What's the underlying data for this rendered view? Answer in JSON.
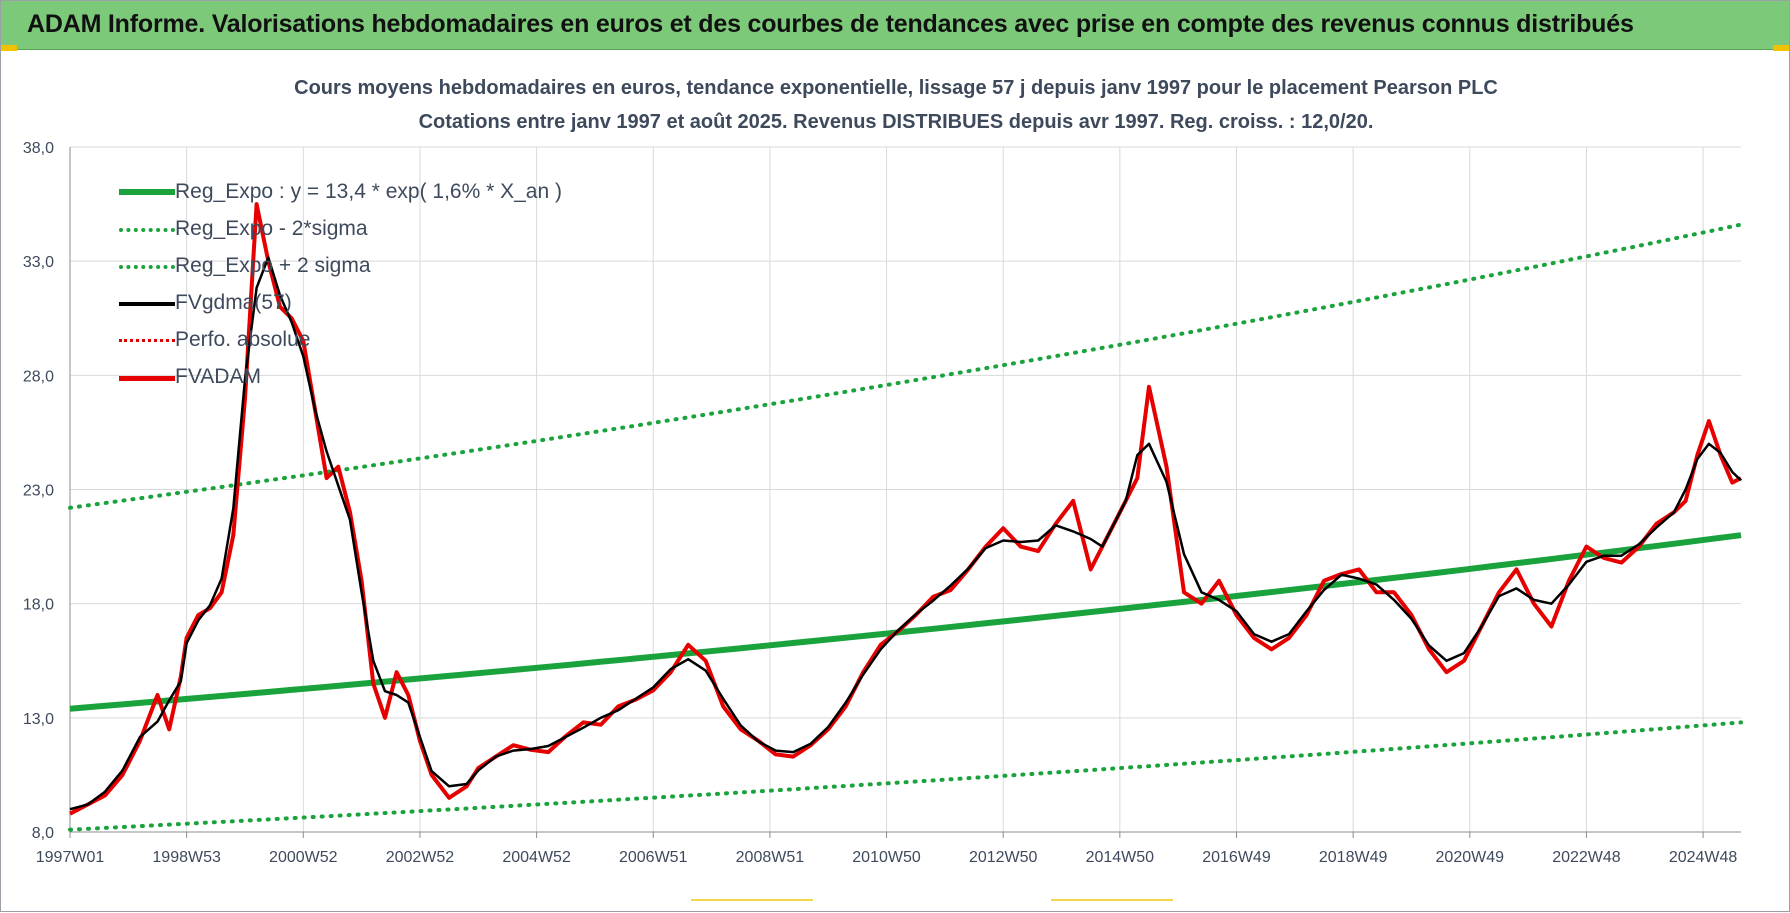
{
  "header": {
    "title": "ADAM Informe. Valorisations hebdomadaires en euros et des courbes de tendances avec prise en compte des revenus connus distribués"
  },
  "chart_data": {
    "type": "line",
    "title": "Cours moyens hebdomadaires en euros, tendance exponentielle, lissage 57 j depuis janv 1997  pour le placement Pearson PLC",
    "subtitle": "Cotations entre janv 1997 et août 2025.  Revenus DISTRIBUES depuis avr 1997.  Reg. croiss. : 12,0/20.",
    "xlabel": "",
    "ylabel": "",
    "xlim": [
      1997.0,
      2025.65
    ],
    "ylim": [
      8.0,
      38.0
    ],
    "yticks": [
      "8,0",
      "13,0",
      "18,0",
      "23,0",
      "28,0",
      "33,0",
      "38,0"
    ],
    "ytick_values": [
      8,
      13,
      18,
      23,
      28,
      33,
      38
    ],
    "xticks": [
      "1997W01",
      "1998W53",
      "2000W52",
      "2002W52",
      "2004W52",
      "2006W51",
      "2008W51",
      "2010W50",
      "2012W50",
      "2014W50",
      "2016W49",
      "2018W49",
      "2020W49",
      "2022W48",
      "2024W48"
    ],
    "xtick_values": [
      1997.0,
      1999.0,
      2001.0,
      2003.0,
      2005.0,
      2007.0,
      2009.0,
      2011.0,
      2013.0,
      2015.0,
      2017.0,
      2019.0,
      2021.0,
      2023.0,
      2025.0
    ],
    "grid": true,
    "legend_position": "top-left",
    "series": [
      {
        "name": "Reg_Expo : y = 13,4 * exp( 1,6% *  X_an )",
        "color": "#1aa33c",
        "style": "solid-thick",
        "x": [
          1997.0,
          2025.65
        ],
        "y": [
          13.4,
          21.0
        ]
      },
      {
        "name": "Reg_Expo - 2*sigma",
        "color": "#1aa33c",
        "style": "dotted",
        "x": [
          1997.0,
          2025.65
        ],
        "y": [
          8.1,
          12.8
        ]
      },
      {
        "name": "Reg_Expo + 2 sigma",
        "color": "#1aa33c",
        "style": "dotted",
        "x": [
          1997.0,
          2025.65
        ],
        "y": [
          22.2,
          34.6
        ]
      },
      {
        "name": "FVgdma(57)",
        "color": "#000000",
        "style": "solid",
        "x": [],
        "y": []
      },
      {
        "name": "Perfo. absolue",
        "color": "#e00000",
        "style": "dotted",
        "x": [],
        "y": []
      },
      {
        "name": "FVADAM",
        "color": "#e60000",
        "style": "solid-thick",
        "x": [
          1997.0,
          1997.3,
          1997.6,
          1997.9,
          1998.2,
          1998.5,
          1998.7,
          1998.9,
          1999.0,
          1999.2,
          1999.4,
          1999.6,
          1999.8,
          2000.0,
          2000.2,
          2000.4,
          2000.6,
          2000.8,
          2001.0,
          2001.2,
          2001.4,
          2001.6,
          2001.8,
          2002.0,
          2002.2,
          2002.4,
          2002.6,
          2002.8,
          2003.0,
          2003.2,
          2003.5,
          2003.8,
          2004.0,
          2004.3,
          2004.6,
          2004.9,
          2005.2,
          2005.5,
          2005.8,
          2006.1,
          2006.4,
          2006.7,
          2007.0,
          2007.3,
          2007.6,
          2007.9,
          2008.2,
          2008.5,
          2008.8,
          2009.1,
          2009.4,
          2009.7,
          2010.0,
          2010.3,
          2010.6,
          2010.9,
          2011.2,
          2011.5,
          2011.8,
          2012.1,
          2012.4,
          2012.7,
          2013.0,
          2013.3,
          2013.6,
          2013.9,
          2014.2,
          2014.5,
          2014.7,
          2014.9,
          2015.1,
          2015.3,
          2015.5,
          2015.8,
          2016.1,
          2016.4,
          2016.7,
          2017.0,
          2017.3,
          2017.6,
          2017.9,
          2018.2,
          2018.5,
          2018.8,
          2019.1,
          2019.4,
          2019.7,
          2020.0,
          2020.3,
          2020.6,
          2020.9,
          2021.2,
          2021.5,
          2021.8,
          2022.1,
          2022.4,
          2022.7,
          2023.0,
          2023.3,
          2023.6,
          2023.9,
          2024.2,
          2024.5,
          2024.7,
          2024.9,
          2025.1,
          2025.3,
          2025.5,
          2025.65
        ],
        "y": [
          8.8,
          9.2,
          9.6,
          10.5,
          12.0,
          14.0,
          12.5,
          14.8,
          16.5,
          17.5,
          17.8,
          18.5,
          21.0,
          27.0,
          35.5,
          33.0,
          31.0,
          30.5,
          29.5,
          26.5,
          23.5,
          24.0,
          22.0,
          19.0,
          14.5,
          13.0,
          15.0,
          14.0,
          12.0,
          10.5,
          9.5,
          10.0,
          10.8,
          11.3,
          11.8,
          11.6,
          11.5,
          12.2,
          12.8,
          12.7,
          13.5,
          13.8,
          14.2,
          15.0,
          16.2,
          15.5,
          13.5,
          12.5,
          12.0,
          11.4,
          11.3,
          11.8,
          12.5,
          13.5,
          15.0,
          16.2,
          16.8,
          17.5,
          18.3,
          18.6,
          19.5,
          20.5,
          21.3,
          20.5,
          20.3,
          21.5,
          22.5,
          19.5,
          20.5,
          21.5,
          22.5,
          23.5,
          27.5,
          24.0,
          18.5,
          18.0,
          19.0,
          17.5,
          16.5,
          16.0,
          16.5,
          17.5,
          19.0,
          19.3,
          19.5,
          18.5,
          18.5,
          17.5,
          16.0,
          15.0,
          15.5,
          17.0,
          18.5,
          19.5,
          18.0,
          17.0,
          19.0,
          20.5,
          20.0,
          19.8,
          20.5,
          21.5,
          22.0,
          22.5,
          24.5,
          26.0,
          24.5,
          23.3,
          23.5
        ]
      }
    ]
  }
}
